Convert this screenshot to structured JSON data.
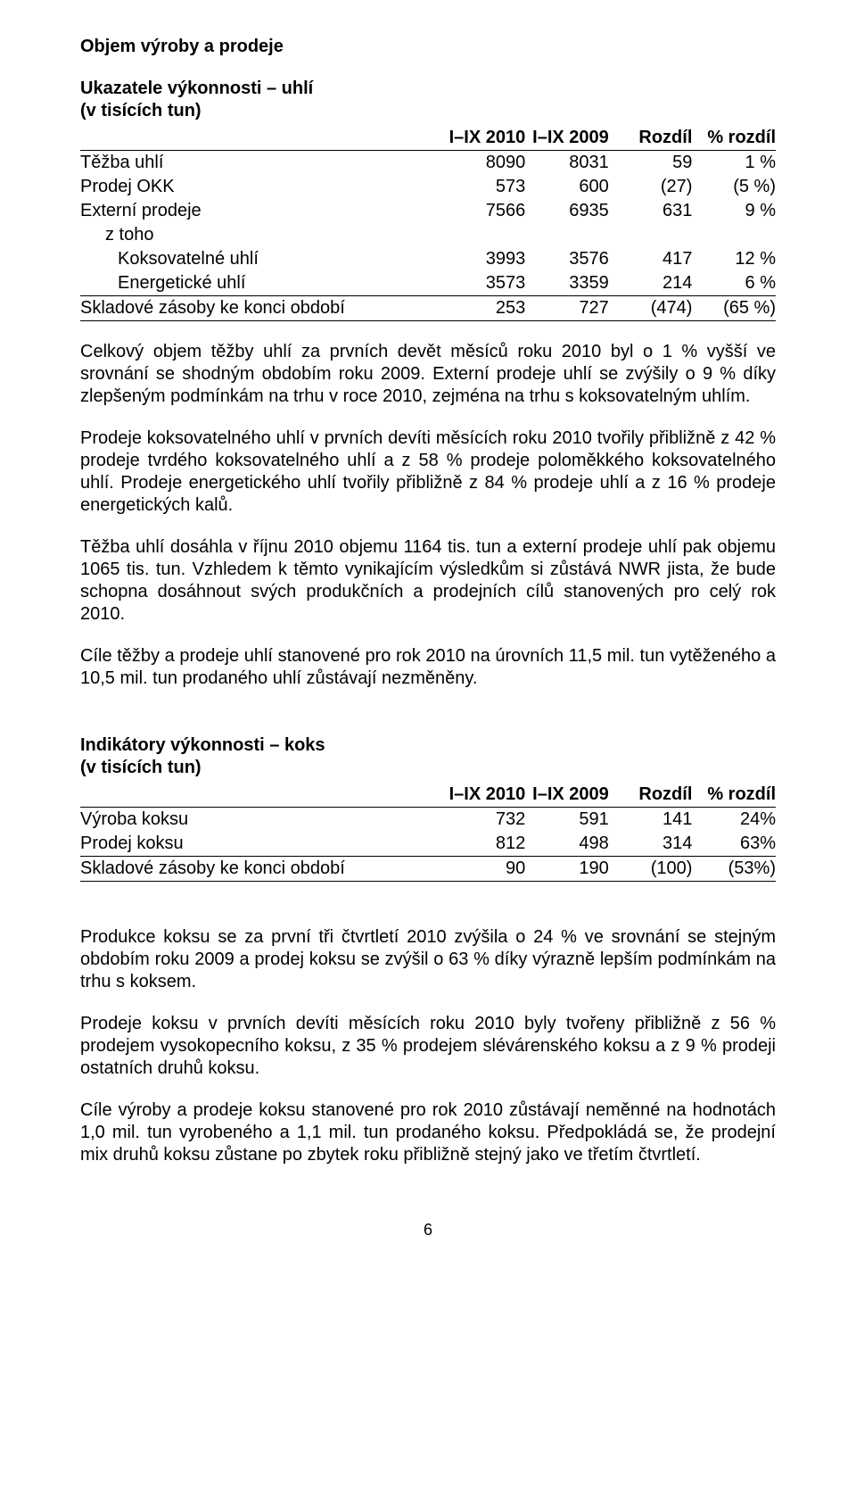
{
  "heading1": "Objem výroby a prodeje",
  "table1": {
    "title": "Ukazatele výkonnosti – uhlí",
    "subtitle": "(v tisících tun)",
    "columns": [
      "",
      "I–IX 2010",
      "I–IX 2009",
      "Rozdíl",
      "% rozdíl"
    ],
    "rows": [
      {
        "label": "Těžba uhlí",
        "c1": "8090",
        "c2": "8031",
        "c3": "59",
        "c4": "1 %",
        "indent": 0
      },
      {
        "label": "Prodej OKK",
        "c1": "573",
        "c2": "600",
        "c3": "(27)",
        "c4": "(5 %)",
        "indent": 0
      },
      {
        "label": "Externí prodeje",
        "c1": "7566",
        "c2": "6935",
        "c3": "631",
        "c4": "9 %",
        "indent": 0
      },
      {
        "label": "z toho",
        "c1": "",
        "c2": "",
        "c3": "",
        "c4": "",
        "indent": 1,
        "italic": false
      },
      {
        "label": "Koksovatelné uhlí",
        "c1": "3993",
        "c2": "3576",
        "c3": "417",
        "c4": "12 %",
        "indent": 2
      },
      {
        "label": "Energetické uhlí",
        "c1": "3573",
        "c2": "3359",
        "c3": "214",
        "c4": "6 %",
        "indent": 2,
        "border_bottom": true
      },
      {
        "label": "Skladové zásoby ke konci období",
        "c1": "253",
        "c2": "727",
        "c3": "(474)",
        "c4": "(65 %)",
        "indent": 0,
        "border_bottom": true
      }
    ]
  },
  "para1": "Celkový objem těžby uhlí za prvních devět měsíců roku 2010 byl o 1 % vyšší ve srovnání se shodným obdobím roku 2009. Externí prodeje uhlí se zvýšily o 9 % díky zlepšeným podmínkám na trhu v roce 2010, zejména na trhu s koksovatelným uhlím.",
  "para2": "Prodeje koksovatelného uhlí v prvních devíti měsících roku 2010 tvořily přibližně z 42 % prodeje tvrdého koksovatelného uhlí a z 58 % prodeje poloměkkého koksovatelného uhlí. Prodeje energetického uhlí tvořily přibližně z 84 % prodeje uhlí a z 16 % prodeje energetických kalů.",
  "para3": "Těžba uhlí dosáhla v říjnu 2010 objemu 1164 tis. tun a externí prodeje uhlí pak objemu 1065 tis. tun. Vzhledem k těmto vynikajícím výsledkům si zůstává NWR jista, že bude schopna dosáhnout svých produkčních a prodejních cílů stanovených pro celý rok 2010.",
  "para4": "Cíle těžby a prodeje uhlí stanovené pro rok 2010 na úrovních 11,5 mil. tun vytěženého a 10,5 mil. tun prodaného uhlí zůstávají nezměněny.",
  "table2": {
    "title": "Indikátory výkonnosti – koks",
    "subtitle": "(v tisících tun)",
    "columns": [
      "",
      "I–IX 2010",
      "I–IX 2009",
      "Rozdíl",
      "% rozdíl"
    ],
    "rows": [
      {
        "label": "Výroba koksu",
        "c1": "732",
        "c2": "591",
        "c3": "141",
        "c4": "24%",
        "indent": 0
      },
      {
        "label": "Prodej koksu",
        "c1": "812",
        "c2": "498",
        "c3": "314",
        "c4": "63%",
        "indent": 0,
        "border_bottom": true
      },
      {
        "label": "Skladové zásoby ke konci období",
        "c1": "90",
        "c2": "190",
        "c3": "(100)",
        "c4": "(53%)",
        "indent": 0,
        "border_bottom": true
      }
    ]
  },
  "para5": "Produkce koksu se za první tři čtvrtletí 2010 zvýšila o 24 % ve srovnání se stejným obdobím roku 2009 a prodej koksu se zvýšil o 63 % díky výrazně lepším podmínkám na trhu s koksem.",
  "para6": "Prodeje koksu v prvních devíti měsících roku 2010 byly tvořeny přibližně z 56 % prodejem vysokopecního koksu, z 35 % prodejem slévárenského koksu a z 9 % prodeji ostatních druhů koksu.",
  "para7": "Cíle výroby a prodeje koksu stanovené pro rok 2010 zůstávají neměnné na hodnotách 1,0 mil. tun vyrobeného a 1,1 mil. tun prodaného koksu. Předpokládá se, že prodejní mix druhů koksu zůstane po zbytek roku přibližně stejný jako ve třetím čtvrtletí.",
  "pagenum": "6"
}
